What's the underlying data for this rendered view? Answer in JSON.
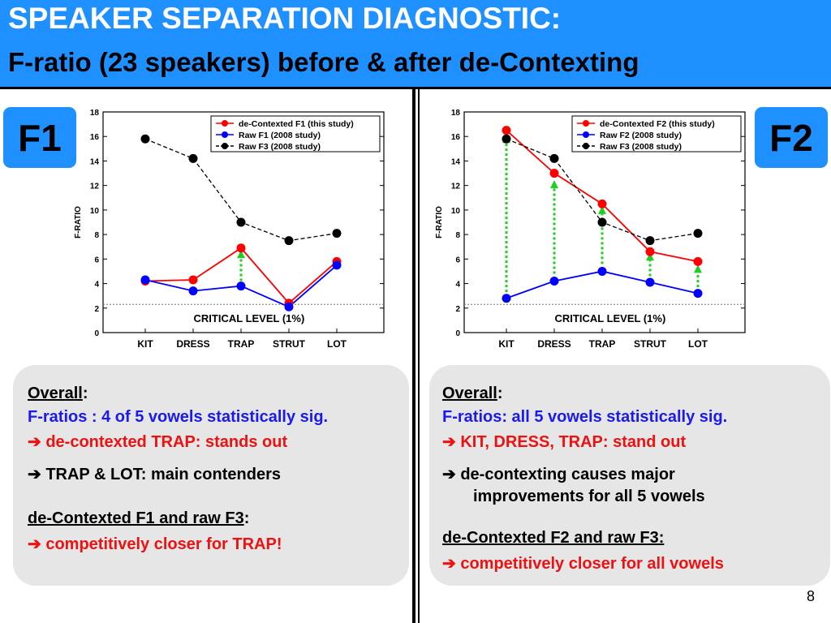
{
  "header": {
    "title": "SPEAKER SEPARATION DIAGNOSTIC:",
    "subtitle": "F-ratio (23 speakers) before & after de-Contexting"
  },
  "badges": {
    "left": "F1",
    "right": "F2"
  },
  "chart_data": [
    {
      "type": "line",
      "id": "f1",
      "categories": [
        "KIT",
        "DRESS",
        "TRAP",
        "STRUT",
        "LOT"
      ],
      "ylabel": "F-RATIO",
      "ylim": [
        0,
        18
      ],
      "yticks": [
        "0",
        "2",
        "4",
        "6",
        "8",
        "10",
        "12",
        "14",
        "16",
        "18"
      ],
      "critical_level": {
        "value": 2.3,
        "label": "CRITICAL  LEVEL (1%)"
      },
      "series": [
        {
          "name": "de-Contexted F1 (this study)",
          "color": "#ff0000",
          "dashed": false,
          "values": [
            4.2,
            4.3,
            6.9,
            2.4,
            5.8
          ]
        },
        {
          "name": "Raw F1 (2008 study)",
          "color": "#0000ff",
          "dashed": false,
          "values": [
            4.3,
            3.4,
            3.8,
            2.1,
            5.5
          ]
        },
        {
          "name": "Raw F3 (2008 study)",
          "color": "#000000",
          "dashed": true,
          "values": [
            15.8,
            14.2,
            9.0,
            7.5,
            8.1
          ]
        }
      ],
      "arrows": [
        {
          "category": "TRAP",
          "from": 4.2,
          "to": 6.6
        }
      ],
      "legend_position": "top-right"
    },
    {
      "type": "line",
      "id": "f2",
      "categories": [
        "KIT",
        "DRESS",
        "TRAP",
        "STRUT",
        "LOT"
      ],
      "ylabel": "F-RATIO",
      "ylim": [
        0,
        18
      ],
      "yticks": [
        "0",
        "2",
        "4",
        "6",
        "8",
        "10",
        "12",
        "14",
        "16",
        "18"
      ],
      "critical_level": {
        "value": 2.3,
        "label": "CRITICAL  LEVEL (1%)"
      },
      "series": [
        {
          "name": "de-Contexted F2 (this study)",
          "color": "#ff0000",
          "dashed": false,
          "values": [
            16.5,
            13.0,
            10.5,
            6.6,
            5.8
          ]
        },
        {
          "name": "Raw F2 (2008 study)",
          "color": "#0000ff",
          "dashed": false,
          "values": [
            2.8,
            4.2,
            5.0,
            4.1,
            3.2
          ]
        },
        {
          "name": "Raw F3 (2008 study)",
          "color": "#000000",
          "dashed": true,
          "values": [
            15.8,
            14.2,
            9.0,
            7.5,
            8.1
          ]
        }
      ],
      "arrows": [
        {
          "category": "KIT",
          "from": 3.3,
          "to": 16.0
        },
        {
          "category": "DRESS",
          "from": 4.8,
          "to": 12.3
        },
        {
          "category": "TRAP",
          "from": 5.6,
          "to": 10.2
        },
        {
          "category": "STRUT",
          "from": 4.6,
          "to": 6.4
        },
        {
          "category": "LOT",
          "from": 3.7,
          "to": 5.4
        }
      ],
      "legend_position": "top-right"
    }
  ],
  "left_panel": {
    "overall_heading": "Overall",
    "colon": ":",
    "line1": "F-ratios : 4 of 5 vowels statistically sig.",
    "line2": "➔  de-contexted TRAP:  stands out",
    "line3": "➔ TRAP & LOT: main contenders",
    "heading2": "de-Contexted F1 and raw F3",
    "colon2": ":",
    "line4": "➔  competitively closer for TRAP!"
  },
  "right_panel": {
    "overall_heading": "Overall",
    "colon": ":",
    "line1": "F-ratios: all 5 vowels statistically sig.",
    "line2": "➔  KIT, DRESS, TRAP: stand out",
    "line3a": "➔  de-contexting causes major",
    "line3b": "improvements for all 5 vowels",
    "heading2": "de-Contexted F2 and raw F3:",
    "line4": "➔  competitively closer for all vowels"
  },
  "page_number": "8"
}
